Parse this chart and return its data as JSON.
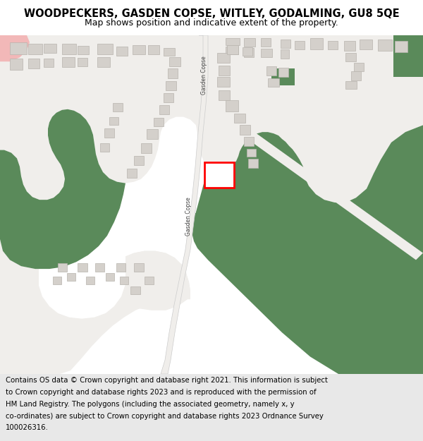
{
  "title": "WOODPECKERS, GASDEN COPSE, WITLEY, GODALMING, GU8 5QE",
  "subtitle": "Map shows position and indicative extent of the property.",
  "bg_color": "#6e9e6e",
  "road_color": "#f0eeeb",
  "building_color": "#d4d0cb",
  "building_outline": "#b8b4ae",
  "highlight_color": "#ff0000",
  "green_color": "#6e9e6e",
  "dark_green": "#5a8a5a",
  "pink_color": "#f2b8b8",
  "footer_bg": "#e8e8e8",
  "title_fontsize": 10.5,
  "subtitle_fontsize": 9,
  "footer_fontsize": 7.5,
  "road_label_color": "#444444",
  "road_line_color": "#cccccc",
  "footer_lines": [
    "Contains OS data © Crown copyright and database right 2021. This information is subject",
    "to Crown copyright and database rights 2023 and is reproduced with the permission of",
    "HM Land Registry. The polygons (including the associated geometry, namely x, y",
    "co-ordinates) are subject to Crown copyright and database rights 2023 Ordnance Survey",
    "100026316."
  ]
}
